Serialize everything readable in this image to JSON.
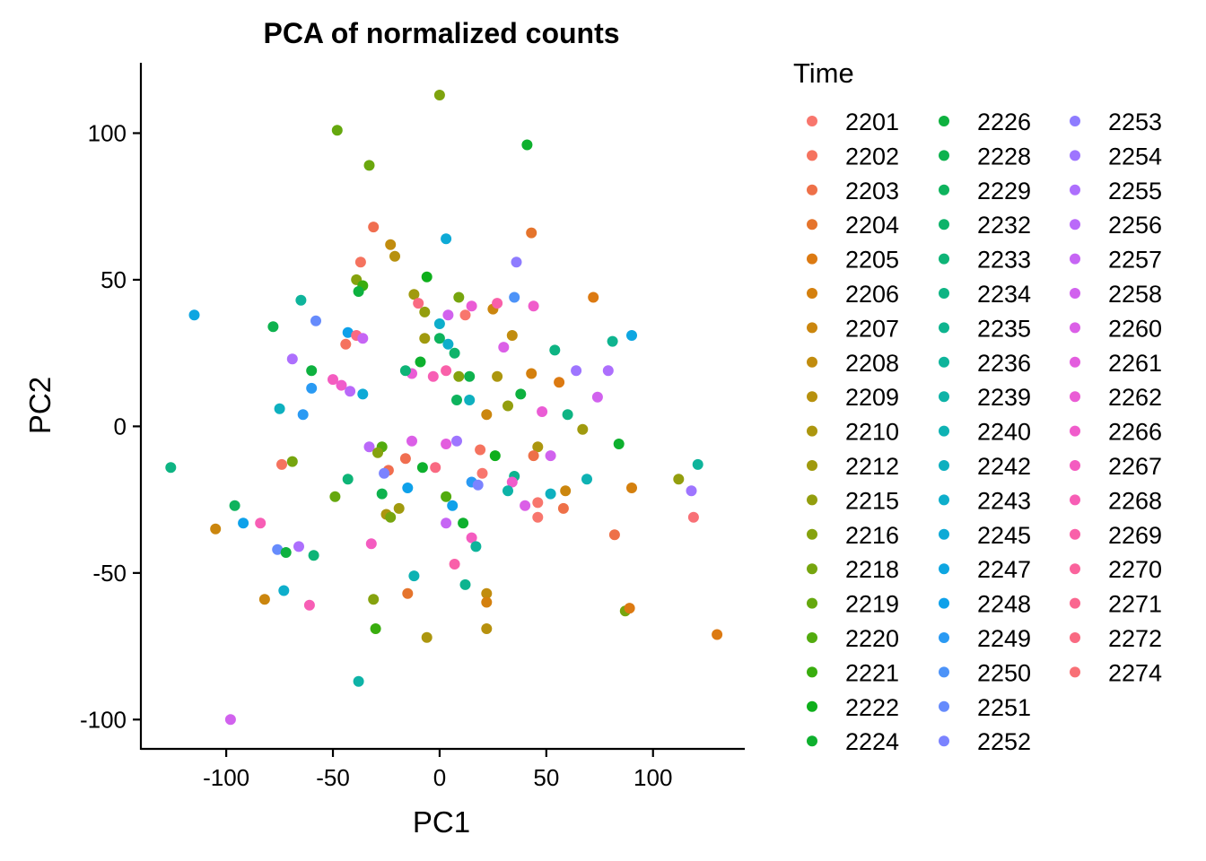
{
  "chart_data": {
    "type": "scatter",
    "title": "PCA of normalized counts",
    "xlabel": "PC1",
    "ylabel": "PC2",
    "xlim": [
      -140,
      143
    ],
    "ylim": [
      -110,
      124
    ],
    "xticks": [
      -100,
      -50,
      0,
      50,
      100
    ],
    "yticks": [
      -100,
      -50,
      0,
      50,
      100
    ],
    "grid": false,
    "legend": {
      "title": "Time",
      "placement": "right",
      "columns": 3,
      "entries": [
        {
          "label": "2201",
          "color": "#F8766D"
        },
        {
          "label": "2202",
          "color": "#F5735F"
        },
        {
          "label": "2203",
          "color": "#EE7048"
        },
        {
          "label": "2204",
          "color": "#E5742C"
        },
        {
          "label": "2205",
          "color": "#DC7A12"
        },
        {
          "label": "2206",
          "color": "#D4800E"
        },
        {
          "label": "2207",
          "color": "#CB860E"
        },
        {
          "label": "2208",
          "color": "#C18C0E"
        },
        {
          "label": "2209",
          "color": "#B7910E"
        },
        {
          "label": "2210",
          "color": "#AC960E"
        },
        {
          "label": "2212",
          "color": "#A09A0E"
        },
        {
          "label": "2215",
          "color": "#939E0E"
        },
        {
          "label": "2216",
          "color": "#85A20E"
        },
        {
          "label": "2218",
          "color": "#76A50E"
        },
        {
          "label": "2219",
          "color": "#65A80E"
        },
        {
          "label": "2220",
          "color": "#52AB0E"
        },
        {
          "label": "2221",
          "color": "#39AD0E"
        },
        {
          "label": "2222",
          "color": "#0EAF1B"
        },
        {
          "label": "2224",
          "color": "#0EB02E"
        },
        {
          "label": "2226",
          "color": "#0EB13F"
        },
        {
          "label": "2228",
          "color": "#0EB24E"
        },
        {
          "label": "2229",
          "color": "#0EB35D"
        },
        {
          "label": "2232",
          "color": "#0EB36A"
        },
        {
          "label": "2233",
          "color": "#0EB477"
        },
        {
          "label": "2234",
          "color": "#0EB483"
        },
        {
          "label": "2235",
          "color": "#0EB48F"
        },
        {
          "label": "2236",
          "color": "#0EB49B"
        },
        {
          "label": "2239",
          "color": "#0EB3A7"
        },
        {
          "label": "2240",
          "color": "#0EB2B3"
        },
        {
          "label": "2242",
          "color": "#0EB0BF"
        },
        {
          "label": "2243",
          "color": "#0EAECB"
        },
        {
          "label": "2245",
          "color": "#0EAAD6"
        },
        {
          "label": "2247",
          "color": "#0EA6E1"
        },
        {
          "label": "2248",
          "color": "#0EA1EA"
        },
        {
          "label": "2249",
          "color": "#2A9AF3"
        },
        {
          "label": "2250",
          "color": "#4D93F8"
        },
        {
          "label": "2251",
          "color": "#668BFC"
        },
        {
          "label": "2252",
          "color": "#7B83FF"
        },
        {
          "label": "2253",
          "color": "#8E7CFF"
        },
        {
          "label": "2254",
          "color": "#9E75FF"
        },
        {
          "label": "2255",
          "color": "#AD6FFD"
        },
        {
          "label": "2256",
          "color": "#BA69F9"
        },
        {
          "label": "2257",
          "color": "#C665F4"
        },
        {
          "label": "2258",
          "color": "#D162EE"
        },
        {
          "label": "2260",
          "color": "#DB5FE7"
        },
        {
          "label": "2261",
          "color": "#E35DDE"
        },
        {
          "label": "2262",
          "color": "#EA5CD5"
        },
        {
          "label": "2266",
          "color": "#F05CCB"
        },
        {
          "label": "2267",
          "color": "#F45CC0"
        },
        {
          "label": "2268",
          "color": "#F75EB5"
        },
        {
          "label": "2269",
          "color": "#F960A9"
        },
        {
          "label": "2270",
          "color": "#FA639C"
        },
        {
          "label": "2271",
          "color": "#FA668F"
        },
        {
          "label": "2272",
          "color": "#F96A82"
        },
        {
          "label": "2274",
          "color": "#F87076"
        }
      ]
    },
    "points": [
      {
        "x": 0,
        "y": 113,
        "color": "#7EA30E"
      },
      {
        "x": -48,
        "y": 101,
        "color": "#65A80E"
      },
      {
        "x": 41,
        "y": 96,
        "color": "#0EB02E"
      },
      {
        "x": -33,
        "y": 89,
        "color": "#6AA70E"
      },
      {
        "x": -31,
        "y": 68,
        "color": "#F06E50"
      },
      {
        "x": 43,
        "y": 66,
        "color": "#E5742C"
      },
      {
        "x": 3,
        "y": 64,
        "color": "#0EAAD6"
      },
      {
        "x": -23,
        "y": 62,
        "color": "#C18C0E"
      },
      {
        "x": -37,
        "y": 56,
        "color": "#F5735F"
      },
      {
        "x": -21,
        "y": 58,
        "color": "#B7910E"
      },
      {
        "x": 36,
        "y": 56,
        "color": "#8E7CFF"
      },
      {
        "x": -6,
        "y": 51,
        "color": "#0EAF1B"
      },
      {
        "x": -39,
        "y": 50,
        "color": "#85A20E"
      },
      {
        "x": -36,
        "y": 48,
        "color": "#39AD0E"
      },
      {
        "x": -38,
        "y": 46,
        "color": "#0EB13F"
      },
      {
        "x": 72,
        "y": 44,
        "color": "#DC7A12"
      },
      {
        "x": -12,
        "y": 45,
        "color": "#A09A0E"
      },
      {
        "x": 9,
        "y": 44,
        "color": "#76A50E"
      },
      {
        "x": 35,
        "y": 44,
        "color": "#4D93F8"
      },
      {
        "x": -65,
        "y": 43,
        "color": "#0EB49B"
      },
      {
        "x": -10,
        "y": 42,
        "color": "#F96A82"
      },
      {
        "x": 15,
        "y": 41,
        "color": "#EA5CD5"
      },
      {
        "x": 25,
        "y": 40,
        "color": "#CB860E"
      },
      {
        "x": 44,
        "y": 41,
        "color": "#F05CCB"
      },
      {
        "x": -7,
        "y": 39,
        "color": "#939E0E"
      },
      {
        "x": 4,
        "y": 38,
        "color": "#D162EE"
      },
      {
        "x": 12,
        "y": 38,
        "color": "#F8766D"
      },
      {
        "x": 27,
        "y": 42,
        "color": "#F960A9"
      },
      {
        "x": -115,
        "y": 38,
        "color": "#0EA6E1"
      },
      {
        "x": -58,
        "y": 36,
        "color": "#668BFC"
      },
      {
        "x": 0,
        "y": 35,
        "color": "#0EAECB"
      },
      {
        "x": -78,
        "y": 34,
        "color": "#0EB24E"
      },
      {
        "x": -43,
        "y": 32,
        "color": "#0EA1EA"
      },
      {
        "x": -39,
        "y": 31,
        "color": "#F96A82"
      },
      {
        "x": -36,
        "y": 30,
        "color": "#C665F4"
      },
      {
        "x": -44,
        "y": 28,
        "color": "#F5735F"
      },
      {
        "x": 34,
        "y": 31,
        "color": "#C18C0E"
      },
      {
        "x": -7,
        "y": 30,
        "color": "#A09A0E"
      },
      {
        "x": 0,
        "y": 30,
        "color": "#0EB35D"
      },
      {
        "x": 4,
        "y": 28,
        "color": "#0EAECB"
      },
      {
        "x": 30,
        "y": 27,
        "color": "#DB5FE7"
      },
      {
        "x": 7,
        "y": 25,
        "color": "#0EB36A"
      },
      {
        "x": 81,
        "y": 29,
        "color": "#0EB48F"
      },
      {
        "x": 90,
        "y": 31,
        "color": "#0EA6E1"
      },
      {
        "x": 54,
        "y": 26,
        "color": "#0EB483"
      },
      {
        "x": -69,
        "y": 23,
        "color": "#AD6FFD"
      },
      {
        "x": -9,
        "y": 22,
        "color": "#0EB02E"
      },
      {
        "x": 64,
        "y": 19,
        "color": "#9E75FF"
      },
      {
        "x": 79,
        "y": 19,
        "color": "#AD6FFD"
      },
      {
        "x": -13,
        "y": 18,
        "color": "#EA5CD5"
      },
      {
        "x": -16,
        "y": 19,
        "color": "#0EB477"
      },
      {
        "x": -3,
        "y": 17,
        "color": "#F75EB5"
      },
      {
        "x": 3,
        "y": 19,
        "color": "#F960A9"
      },
      {
        "x": -60,
        "y": 19,
        "color": "#0EB13F"
      },
      {
        "x": 9,
        "y": 17,
        "color": "#85A20E"
      },
      {
        "x": 14,
        "y": 17,
        "color": "#0EB24E"
      },
      {
        "x": 27,
        "y": 17,
        "color": "#AC960E"
      },
      {
        "x": 43,
        "y": 18,
        "color": "#D4800E"
      },
      {
        "x": 56,
        "y": 15,
        "color": "#DC7A12"
      },
      {
        "x": -50,
        "y": 16,
        "color": "#F45CC0"
      },
      {
        "x": -46,
        "y": 14,
        "color": "#F05CCB"
      },
      {
        "x": -42,
        "y": 12,
        "color": "#BA69F9"
      },
      {
        "x": -36,
        "y": 11,
        "color": "#0EAAD6"
      },
      {
        "x": -60,
        "y": 13,
        "color": "#2A9AF3"
      },
      {
        "x": 74,
        "y": 10,
        "color": "#D162EE"
      },
      {
        "x": 38,
        "y": 11,
        "color": "#0EB13F"
      },
      {
        "x": 8,
        "y": 9,
        "color": "#0EB35D"
      },
      {
        "x": 14,
        "y": 9,
        "color": "#0EB0BF"
      },
      {
        "x": 32,
        "y": 7,
        "color": "#939E0E"
      },
      {
        "x": -75,
        "y": 6,
        "color": "#0EB0BF"
      },
      {
        "x": 48,
        "y": 5,
        "color": "#EA5CD5"
      },
      {
        "x": 60,
        "y": 4,
        "color": "#0EB483"
      },
      {
        "x": -64,
        "y": 4,
        "color": "#2A9AF3"
      },
      {
        "x": 22,
        "y": 4,
        "color": "#CB860E"
      },
      {
        "x": 67,
        "y": -1,
        "color": "#A09A0E"
      },
      {
        "x": -13,
        "y": -5,
        "color": "#DB5FE7"
      },
      {
        "x": -33,
        "y": -7,
        "color": "#BA69F9"
      },
      {
        "x": -27,
        "y": -7,
        "color": "#52AB0E"
      },
      {
        "x": 3,
        "y": -6,
        "color": "#E35DDE"
      },
      {
        "x": 8,
        "y": -5,
        "color": "#9E75FF"
      },
      {
        "x": 46,
        "y": -7,
        "color": "#AC960E"
      },
      {
        "x": 84,
        "y": -6,
        "color": "#0EB02E"
      },
      {
        "x": -29,
        "y": -9,
        "color": "#85A20E"
      },
      {
        "x": 19,
        "y": -8,
        "color": "#F5735F"
      },
      {
        "x": -126,
        "y": -14,
        "color": "#0EB483"
      },
      {
        "x": -74,
        "y": -13,
        "color": "#F5735F"
      },
      {
        "x": -69,
        "y": -12,
        "color": "#76A50E"
      },
      {
        "x": -16,
        "y": -11,
        "color": "#F06E50"
      },
      {
        "x": 26,
        "y": -10,
        "color": "#0EAF1B"
      },
      {
        "x": 44,
        "y": -10,
        "color": "#EE7048"
      },
      {
        "x": 52,
        "y": -10,
        "color": "#D162EE"
      },
      {
        "x": 121,
        "y": -13,
        "color": "#0EB49B"
      },
      {
        "x": -24,
        "y": -15,
        "color": "#F06E50"
      },
      {
        "x": -8,
        "y": -14,
        "color": "#0EB02E"
      },
      {
        "x": -2,
        "y": -14,
        "color": "#F96A82"
      },
      {
        "x": -26,
        "y": -16,
        "color": "#7B83FF"
      },
      {
        "x": -43,
        "y": -18,
        "color": "#0EB477"
      },
      {
        "x": 20,
        "y": -16,
        "color": "#F8766D"
      },
      {
        "x": 35,
        "y": -17,
        "color": "#0EB48F"
      },
      {
        "x": 69,
        "y": -18,
        "color": "#0EB2B3"
      },
      {
        "x": 112,
        "y": -18,
        "color": "#939E0E"
      },
      {
        "x": 15,
        "y": -19,
        "color": "#2A9AF3"
      },
      {
        "x": 18,
        "y": -20,
        "color": "#7B83FF"
      },
      {
        "x": 34,
        "y": -19,
        "color": "#F05CCB"
      },
      {
        "x": -15,
        "y": -21,
        "color": "#0EA1EA"
      },
      {
        "x": 32,
        "y": -22,
        "color": "#0EB3A7"
      },
      {
        "x": 52,
        "y": -23,
        "color": "#0EB0BF"
      },
      {
        "x": 59,
        "y": -22,
        "color": "#CB860E"
      },
      {
        "x": 90,
        "y": -21,
        "color": "#D4800E"
      },
      {
        "x": 118,
        "y": -22,
        "color": "#9E75FF"
      },
      {
        "x": -27,
        "y": -23,
        "color": "#0EB24E"
      },
      {
        "x": 3,
        "y": -24,
        "color": "#52AB0E"
      },
      {
        "x": -49,
        "y": -24,
        "color": "#65A80E"
      },
      {
        "x": -96,
        "y": -27,
        "color": "#0EB35D"
      },
      {
        "x": 40,
        "y": -27,
        "color": "#DB5FE7"
      },
      {
        "x": 46,
        "y": -26,
        "color": "#F8766D"
      },
      {
        "x": 6,
        "y": -27,
        "color": "#0EA1EA"
      },
      {
        "x": -19,
        "y": -28,
        "color": "#A09A0E"
      },
      {
        "x": -25,
        "y": -30,
        "color": "#AC960E"
      },
      {
        "x": -23,
        "y": -31,
        "color": "#76A50E"
      },
      {
        "x": 46,
        "y": -31,
        "color": "#F8766D"
      },
      {
        "x": 58,
        "y": -28,
        "color": "#EE7048"
      },
      {
        "x": 119,
        "y": -31,
        "color": "#F87076"
      },
      {
        "x": -92,
        "y": -33,
        "color": "#0EA1EA"
      },
      {
        "x": -84,
        "y": -33,
        "color": "#F75EB5"
      },
      {
        "x": 3,
        "y": -33,
        "color": "#C665F4"
      },
      {
        "x": 11,
        "y": -33,
        "color": "#0EB02E"
      },
      {
        "x": -105,
        "y": -35,
        "color": "#CB860E"
      },
      {
        "x": 82,
        "y": -37,
        "color": "#EE7048"
      },
      {
        "x": 15,
        "y": -38,
        "color": "#F45CC0"
      },
      {
        "x": -32,
        "y": -40,
        "color": "#F45CC0"
      },
      {
        "x": -66,
        "y": -41,
        "color": "#AD6FFD"
      },
      {
        "x": 17,
        "y": -41,
        "color": "#0EB49B"
      },
      {
        "x": -76,
        "y": -42,
        "color": "#668BFC"
      },
      {
        "x": -72,
        "y": -43,
        "color": "#0EB13F"
      },
      {
        "x": -59,
        "y": -44,
        "color": "#0EB477"
      },
      {
        "x": 7,
        "y": -47,
        "color": "#F960A9"
      },
      {
        "x": -12,
        "y": -51,
        "color": "#0EB2B3"
      },
      {
        "x": 12,
        "y": -54,
        "color": "#0EB48F"
      },
      {
        "x": -73,
        "y": -56,
        "color": "#0EAECB"
      },
      {
        "x": -15,
        "y": -57,
        "color": "#E5742C"
      },
      {
        "x": 22,
        "y": -57,
        "color": "#C18C0E"
      },
      {
        "x": 22,
        "y": -60,
        "color": "#D4800E"
      },
      {
        "x": -82,
        "y": -59,
        "color": "#CB860E"
      },
      {
        "x": -31,
        "y": -59,
        "color": "#85A20E"
      },
      {
        "x": -61,
        "y": -61,
        "color": "#F75EB5"
      },
      {
        "x": 87,
        "y": -63,
        "color": "#76A50E"
      },
      {
        "x": 89,
        "y": -62,
        "color": "#DC7A12"
      },
      {
        "x": 22,
        "y": -69,
        "color": "#B7910E"
      },
      {
        "x": -30,
        "y": -69,
        "color": "#39AD0E"
      },
      {
        "x": -6,
        "y": -72,
        "color": "#AC960E"
      },
      {
        "x": 130,
        "y": -71,
        "color": "#DC7A12"
      },
      {
        "x": -38,
        "y": -87,
        "color": "#0EB3A7"
      },
      {
        "x": -98,
        "y": -100,
        "color": "#D162EE"
      }
    ]
  }
}
